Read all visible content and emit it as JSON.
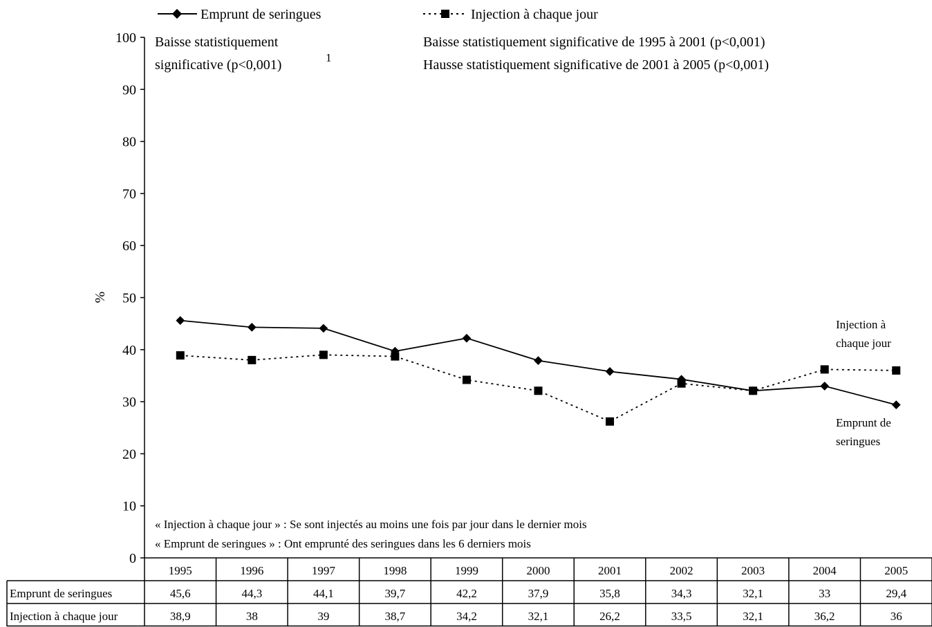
{
  "chart_data": {
    "type": "line",
    "categories": [
      "1995",
      "1996",
      "1997",
      "1998",
      "1999",
      "2000",
      "2001",
      "2002",
      "2003",
      "2004",
      "2005"
    ],
    "series": [
      {
        "name": "Emprunt de seringues",
        "values": [
          45.6,
          44.3,
          44.1,
          39.7,
          42.2,
          37.9,
          35.8,
          34.3,
          32.1,
          33,
          29.4
        ],
        "line": "solid",
        "marker": "diamond"
      },
      {
        "name": "Injection à chaque jour",
        "values": [
          38.9,
          38,
          39,
          38.7,
          34.2,
          32.1,
          26.2,
          33.5,
          32.1,
          36.2,
          36
        ],
        "line": "dotted",
        "marker": "square"
      }
    ],
    "ylabel": "%",
    "ylim": [
      0,
      100
    ],
    "yticks": [
      "0",
      "10",
      "20",
      "30",
      "40",
      "50",
      "60",
      "70",
      "80",
      "90",
      "100"
    ],
    "grid": false,
    "legend_position": "top",
    "annotations": {
      "left_line1": "Baisse statistiquement",
      "left_line2": "significative (p<0,001)",
      "superscript": "1",
      "right_line1": "Baisse statistiquement significative de 1995 à 2001 (p<0,001)",
      "right_line2": "Hausse statistiquement significative de 2001 à 2005 (p<0,001)",
      "note1": "« Injection à chaque jour » : Se sont injectés au moins une fois par jour dans le dernier mois",
      "note2": "« Emprunt de seringues » : Ont emprunté des seringues dans les 6 derniers mois",
      "label_injection_line1": "Injection à",
      "label_injection_line2": "chaque jour",
      "label_emprunt_line1": "Emprunt de",
      "label_emprunt_line2": "seringues"
    },
    "table": {
      "rows": [
        {
          "label": "Emprunt de seringues",
          "values": [
            "45,6",
            "44,3",
            "44,1",
            "39,7",
            "42,2",
            "37,9",
            "35,8",
            "34,3",
            "32,1",
            "33",
            "29,4"
          ]
        },
        {
          "label": "Injection à chaque jour",
          "values": [
            "38,9",
            "38",
            "39",
            "38,7",
            "34,2",
            "32,1",
            "26,2",
            "33,5",
            "32,1",
            "36,2",
            "36"
          ]
        }
      ]
    }
  }
}
